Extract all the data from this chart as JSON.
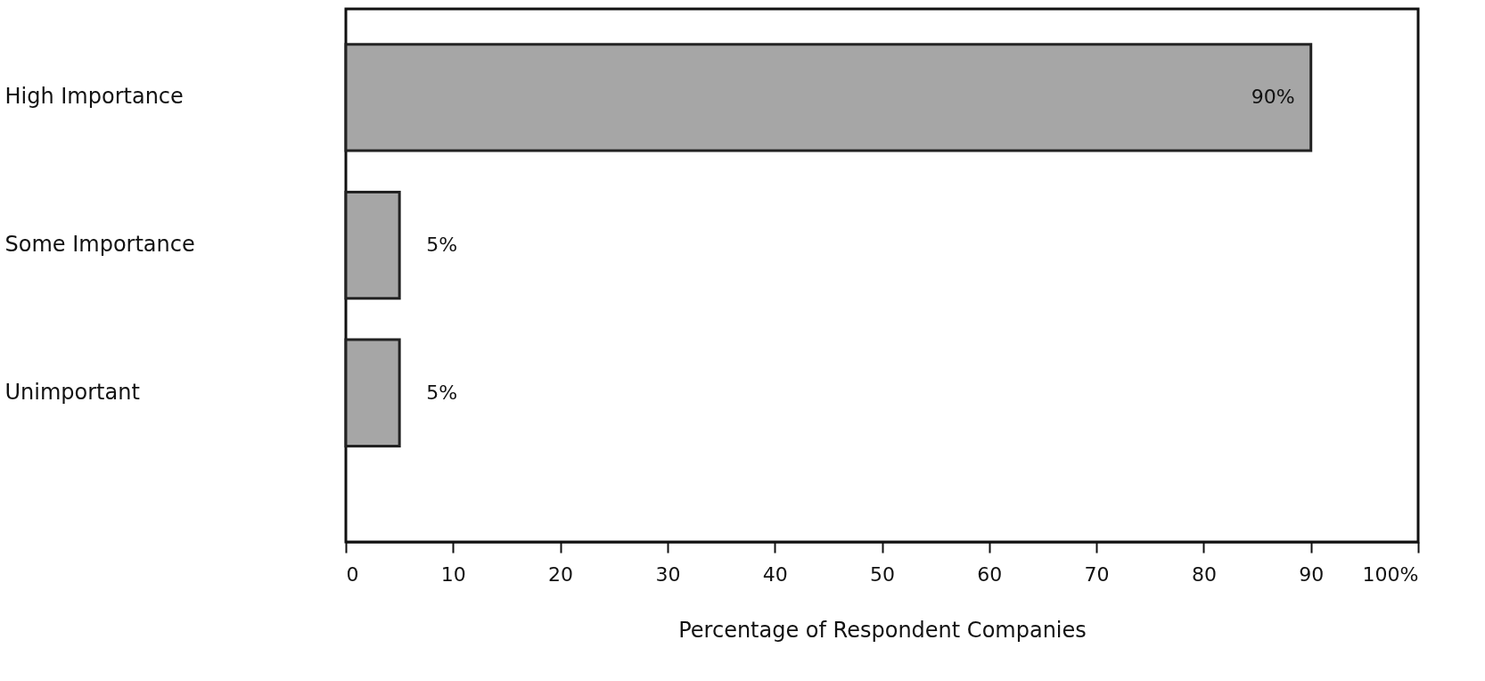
{
  "chart_data": {
    "type": "bar",
    "orientation": "horizontal",
    "categories": [
      "High Importance",
      "Some Importance",
      "Unimportant"
    ],
    "values": [
      90,
      5,
      5
    ],
    "value_labels": [
      "90%",
      "5%",
      "5%"
    ],
    "color": "#a6a6a6",
    "xlim": [
      0,
      100
    ],
    "xticks": [
      0,
      10,
      20,
      30,
      40,
      50,
      60,
      70,
      80,
      90,
      {
        "value": 100,
        "label": "100%"
      }
    ],
    "xlabel": "Percentage of Respondent Companies",
    "grid": false
  }
}
